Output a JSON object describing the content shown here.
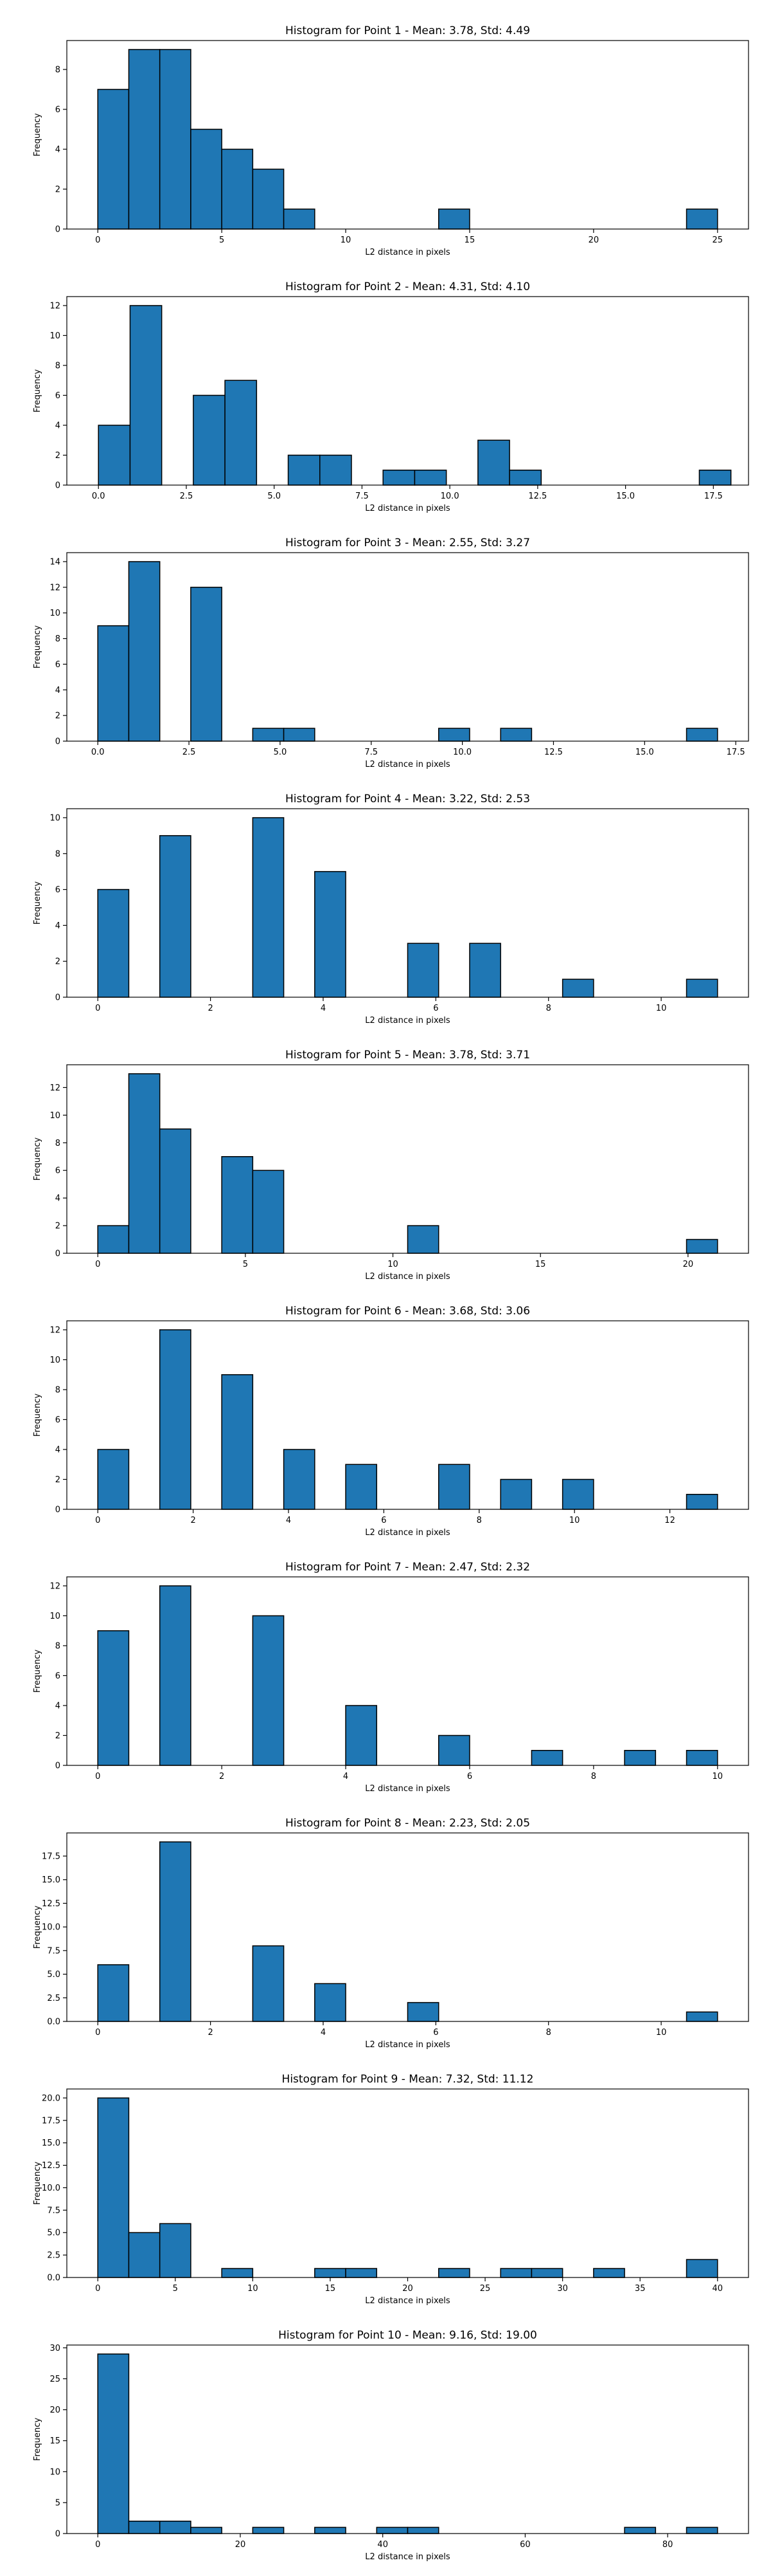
{
  "figure": {
    "bar_color": "#1f77b4",
    "edge_color": "#000000"
  },
  "chart_data": [
    {
      "type": "bar",
      "title": "Histogram for Point 1 - Mean: 3.78, Std: 4.49",
      "xlabel": "L2 distance in pixels",
      "ylabel": "Frequency",
      "xlim": [
        -1.25,
        26.25
      ],
      "ylim": [
        0,
        9.45
      ],
      "xticks": [
        0,
        5,
        10,
        15,
        20,
        25
      ],
      "xtick_labels": [
        "0",
        "5",
        "10",
        "15",
        "20",
        "25"
      ],
      "yticks": [
        0,
        2,
        4,
        6,
        8
      ],
      "ytick_labels": [
        "0",
        "2",
        "4",
        "6",
        "8"
      ],
      "bins": [
        {
          "x0": 0.0,
          "x1": 1.25,
          "count": 7
        },
        {
          "x0": 1.25,
          "x1": 2.5,
          "count": 9
        },
        {
          "x0": 2.5,
          "x1": 3.75,
          "count": 9
        },
        {
          "x0": 3.75,
          "x1": 5.0,
          "count": 5
        },
        {
          "x0": 5.0,
          "x1": 6.25,
          "count": 4
        },
        {
          "x0": 6.25,
          "x1": 7.5,
          "count": 3
        },
        {
          "x0": 7.5,
          "x1": 8.75,
          "count": 1
        },
        {
          "x0": 13.75,
          "x1": 15.0,
          "count": 1
        },
        {
          "x0": 23.75,
          "x1": 25.0,
          "count": 1
        }
      ]
    },
    {
      "type": "bar",
      "title": "Histogram for Point 2 - Mean: 4.31, Std: 4.10",
      "xlabel": "L2 distance in pixels",
      "ylabel": "Frequency",
      "xlim": [
        -0.9,
        18.5
      ],
      "ylim": [
        0,
        12.6
      ],
      "xticks": [
        0,
        2.5,
        5,
        7.5,
        10,
        12.5,
        15,
        17.5
      ],
      "xtick_labels": [
        "0.0",
        "2.5",
        "5.0",
        "7.5",
        "10.0",
        "12.5",
        "15.0",
        "17.5"
      ],
      "yticks": [
        0,
        2,
        4,
        6,
        8,
        10,
        12
      ],
      "ytick_labels": [
        "0",
        "2",
        "4",
        "6",
        "8",
        "10",
        "12"
      ],
      "bins": [
        {
          "x0": 0.0,
          "x1": 0.9,
          "count": 4
        },
        {
          "x0": 0.9,
          "x1": 1.8,
          "count": 12
        },
        {
          "x0": 2.7,
          "x1": 3.6,
          "count": 6
        },
        {
          "x0": 3.6,
          "x1": 4.5,
          "count": 7
        },
        {
          "x0": 5.4,
          "x1": 6.3,
          "count": 2
        },
        {
          "x0": 6.3,
          "x1": 7.2,
          "count": 2
        },
        {
          "x0": 8.1,
          "x1": 9.0,
          "count": 1
        },
        {
          "x0": 9.0,
          "x1": 9.9,
          "count": 1
        },
        {
          "x0": 10.8,
          "x1": 11.7,
          "count": 3
        },
        {
          "x0": 11.7,
          "x1": 12.6,
          "count": 1
        },
        {
          "x0": 17.1,
          "x1": 18.0,
          "count": 1
        }
      ]
    },
    {
      "type": "bar",
      "title": "Histogram for Point 3 - Mean: 2.55, Std: 3.27",
      "xlabel": "L2 distance in pixels",
      "ylabel": "Frequency",
      "xlim": [
        -0.85,
        17.85
      ],
      "ylim": [
        0,
        14.7
      ],
      "xticks": [
        0,
        2.5,
        5,
        7.5,
        10,
        12.5,
        15,
        17.5
      ],
      "xtick_labels": [
        "0.0",
        "2.5",
        "5.0",
        "7.5",
        "10.0",
        "12.5",
        "15.0",
        "17.5"
      ],
      "yticks": [
        0,
        2,
        4,
        6,
        8,
        10,
        12,
        14
      ],
      "ytick_labels": [
        "0",
        "2",
        "4",
        "6",
        "8",
        "10",
        "12",
        "14"
      ],
      "bins": [
        {
          "x0": 0.0,
          "x1": 0.85,
          "count": 9
        },
        {
          "x0": 0.85,
          "x1": 1.7,
          "count": 14
        },
        {
          "x0": 2.55,
          "x1": 3.4,
          "count": 12
        },
        {
          "x0": 4.25,
          "x1": 5.1,
          "count": 1
        },
        {
          "x0": 5.1,
          "x1": 5.95,
          "count": 1
        },
        {
          "x0": 9.35,
          "x1": 10.2,
          "count": 1
        },
        {
          "x0": 11.05,
          "x1": 11.9,
          "count": 1
        },
        {
          "x0": 16.15,
          "x1": 17.0,
          "count": 1
        }
      ]
    },
    {
      "type": "bar",
      "title": "Histogram for Point 4 - Mean: 3.22, Std: 2.53",
      "xlabel": "L2 distance in pixels",
      "ylabel": "Frequency",
      "xlim": [
        -0.55,
        11.55
      ],
      "ylim": [
        0,
        10.5
      ],
      "xticks": [
        0,
        2,
        4,
        6,
        8,
        10
      ],
      "xtick_labels": [
        "0",
        "2",
        "4",
        "6",
        "8",
        "10"
      ],
      "yticks": [
        0,
        2,
        4,
        6,
        8,
        10
      ],
      "ytick_labels": [
        "0",
        "2",
        "4",
        "6",
        "8",
        "10"
      ],
      "bins": [
        {
          "x0": 0.0,
          "x1": 0.55,
          "count": 6
        },
        {
          "x0": 1.1,
          "x1": 1.65,
          "count": 9
        },
        {
          "x0": 2.75,
          "x1": 3.3,
          "count": 10
        },
        {
          "x0": 3.85,
          "x1": 4.4,
          "count": 7
        },
        {
          "x0": 5.5,
          "x1": 6.05,
          "count": 3
        },
        {
          "x0": 6.6,
          "x1": 7.15,
          "count": 3
        },
        {
          "x0": 8.25,
          "x1": 8.8,
          "count": 1
        },
        {
          "x0": 10.45,
          "x1": 11.0,
          "count": 1
        }
      ]
    },
    {
      "type": "bar",
      "title": "Histogram for Point 5 - Mean: 3.78, Std: 3.71",
      "xlabel": "L2 distance in pixels",
      "ylabel": "Frequency",
      "xlim": [
        -1.05,
        22.05
      ],
      "ylim": [
        0,
        13.65
      ],
      "xticks": [
        0,
        5,
        10,
        15,
        20
      ],
      "xtick_labels": [
        "0",
        "5",
        "10",
        "15",
        "20"
      ],
      "yticks": [
        0,
        2,
        4,
        6,
        8,
        10,
        12
      ],
      "ytick_labels": [
        "0",
        "2",
        "4",
        "6",
        "8",
        "10",
        "12"
      ],
      "bins": [
        {
          "x0": 0.0,
          "x1": 1.05,
          "count": 2
        },
        {
          "x0": 1.05,
          "x1": 2.1,
          "count": 13
        },
        {
          "x0": 2.1,
          "x1": 3.15,
          "count": 9
        },
        {
          "x0": 4.2,
          "x1": 5.25,
          "count": 7
        },
        {
          "x0": 5.25,
          "x1": 6.3,
          "count": 6
        },
        {
          "x0": 10.5,
          "x1": 11.55,
          "count": 2
        },
        {
          "x0": 19.95,
          "x1": 21.0,
          "count": 1
        }
      ]
    },
    {
      "type": "bar",
      "title": "Histogram for Point 6 - Mean: 3.68, Std: 3.06",
      "xlabel": "L2 distance in pixels",
      "ylabel": "Frequency",
      "xlim": [
        -0.65,
        13.65
      ],
      "ylim": [
        0,
        12.6
      ],
      "xticks": [
        0,
        2,
        4,
        6,
        8,
        10,
        12
      ],
      "xtick_labels": [
        "0",
        "2",
        "4",
        "6",
        "8",
        "10",
        "12"
      ],
      "yticks": [
        0,
        2,
        4,
        6,
        8,
        10,
        12
      ],
      "ytick_labels": [
        "0",
        "2",
        "4",
        "6",
        "8",
        "10",
        "12"
      ],
      "bins": [
        {
          "x0": 0.0,
          "x1": 0.65,
          "count": 4
        },
        {
          "x0": 1.3,
          "x1": 1.95,
          "count": 12
        },
        {
          "x0": 2.6,
          "x1": 3.25,
          "count": 9
        },
        {
          "x0": 3.9,
          "x1": 4.55,
          "count": 4
        },
        {
          "x0": 5.2,
          "x1": 5.85,
          "count": 3
        },
        {
          "x0": 7.15,
          "x1": 7.8,
          "count": 3
        },
        {
          "x0": 8.45,
          "x1": 9.1,
          "count": 2
        },
        {
          "x0": 9.75,
          "x1": 10.4,
          "count": 2
        },
        {
          "x0": 12.35,
          "x1": 13.0,
          "count": 1
        }
      ]
    },
    {
      "type": "bar",
      "title": "Histogram for Point 7 - Mean: 2.47, Std: 2.32",
      "xlabel": "L2 distance in pixels",
      "ylabel": "Frequency",
      "xlim": [
        -0.5,
        10.5
      ],
      "ylim": [
        0,
        12.6
      ],
      "xticks": [
        0,
        2,
        4,
        6,
        8,
        10
      ],
      "xtick_labels": [
        "0",
        "2",
        "4",
        "6",
        "8",
        "10"
      ],
      "yticks": [
        0,
        2,
        4,
        6,
        8,
        10,
        12
      ],
      "ytick_labels": [
        "0",
        "2",
        "4",
        "6",
        "8",
        "10",
        "12"
      ],
      "bins": [
        {
          "x0": 0.0,
          "x1": 0.5,
          "count": 9
        },
        {
          "x0": 1.0,
          "x1": 1.5,
          "count": 12
        },
        {
          "x0": 2.5,
          "x1": 3.0,
          "count": 10
        },
        {
          "x0": 4.0,
          "x1": 4.5,
          "count": 4
        },
        {
          "x0": 5.5,
          "x1": 6.0,
          "count": 2
        },
        {
          "x0": 7.0,
          "x1": 7.5,
          "count": 1
        },
        {
          "x0": 8.5,
          "x1": 9.0,
          "count": 1
        },
        {
          "x0": 9.5,
          "x1": 10.0,
          "count": 1
        }
      ]
    },
    {
      "type": "bar",
      "title": "Histogram for Point 8 - Mean: 2.23, Std: 2.05",
      "xlabel": "L2 distance in pixels",
      "ylabel": "Frequency",
      "xlim": [
        -0.55,
        11.55
      ],
      "ylim": [
        0,
        19.95
      ],
      "xticks": [
        0,
        2,
        4,
        6,
        8,
        10
      ],
      "xtick_labels": [
        "0",
        "2",
        "4",
        "6",
        "8",
        "10"
      ],
      "yticks": [
        0,
        2.5,
        5,
        7.5,
        10,
        12.5,
        15,
        17.5
      ],
      "ytick_labels": [
        "0.0",
        "2.5",
        "5.0",
        "7.5",
        "10.0",
        "12.5",
        "15.0",
        "17.5"
      ],
      "bins": [
        {
          "x0": 0.0,
          "x1": 0.55,
          "count": 6
        },
        {
          "x0": 1.1,
          "x1": 1.65,
          "count": 19
        },
        {
          "x0": 2.75,
          "x1": 3.3,
          "count": 8
        },
        {
          "x0": 3.85,
          "x1": 4.4,
          "count": 4
        },
        {
          "x0": 5.5,
          "x1": 6.05,
          "count": 2
        },
        {
          "x0": 10.45,
          "x1": 11.0,
          "count": 1
        }
      ]
    },
    {
      "type": "bar",
      "title": "Histogram for Point 9 - Mean: 7.32, Std: 11.12",
      "xlabel": "L2 distance in pixels",
      "ylabel": "Frequency",
      "xlim": [
        -2.0,
        42.0
      ],
      "ylim": [
        0,
        21.0
      ],
      "xticks": [
        0,
        5,
        10,
        15,
        20,
        25,
        30,
        35,
        40
      ],
      "xtick_labels": [
        "0",
        "5",
        "10",
        "15",
        "20",
        "25",
        "30",
        "35",
        "40"
      ],
      "yticks": [
        0,
        2.5,
        5,
        7.5,
        10,
        12.5,
        15,
        17.5,
        20
      ],
      "ytick_labels": [
        "0.0",
        "2.5",
        "5.0",
        "7.5",
        "10.0",
        "12.5",
        "15.0",
        "17.5",
        "20.0"
      ],
      "bins": [
        {
          "x0": 0.0,
          "x1": 2.0,
          "count": 20
        },
        {
          "x0": 2.0,
          "x1": 4.0,
          "count": 5
        },
        {
          "x0": 4.0,
          "x1": 6.0,
          "count": 6
        },
        {
          "x0": 8.0,
          "x1": 10.0,
          "count": 1
        },
        {
          "x0": 14.0,
          "x1": 16.0,
          "count": 1
        },
        {
          "x0": 16.0,
          "x1": 18.0,
          "count": 1
        },
        {
          "x0": 22.0,
          "x1": 24.0,
          "count": 1
        },
        {
          "x0": 26.0,
          "x1": 28.0,
          "count": 1
        },
        {
          "x0": 28.0,
          "x1": 30.0,
          "count": 1
        },
        {
          "x0": 32.0,
          "x1": 34.0,
          "count": 1
        },
        {
          "x0": 38.0,
          "x1": 40.0,
          "count": 2
        }
      ]
    },
    {
      "type": "bar",
      "title": "Histogram for Point 10 - Mean: 9.16, Std: 19.00",
      "xlabel": "L2 distance in pixels",
      "ylabel": "Frequency",
      "xlim": [
        -4.35,
        91.35
      ],
      "ylim": [
        0,
        30.45
      ],
      "xticks": [
        0,
        20,
        40,
        60,
        80
      ],
      "xtick_labels": [
        "0",
        "20",
        "40",
        "60",
        "80"
      ],
      "yticks": [
        0,
        5,
        10,
        15,
        20,
        25,
        30
      ],
      "ytick_labels": [
        "0",
        "5",
        "10",
        "15",
        "20",
        "25",
        "30"
      ],
      "bins": [
        {
          "x0": 0.0,
          "x1": 4.35,
          "count": 29
        },
        {
          "x0": 4.35,
          "x1": 8.7,
          "count": 2
        },
        {
          "x0": 8.7,
          "x1": 13.05,
          "count": 2
        },
        {
          "x0": 13.05,
          "x1": 17.4,
          "count": 1
        },
        {
          "x0": 21.75,
          "x1": 26.1,
          "count": 1
        },
        {
          "x0": 30.45,
          "x1": 34.8,
          "count": 1
        },
        {
          "x0": 39.15,
          "x1": 43.5,
          "count": 1
        },
        {
          "x0": 43.5,
          "x1": 47.85,
          "count": 1
        },
        {
          "x0": 73.95,
          "x1": 78.3,
          "count": 1
        },
        {
          "x0": 82.65,
          "x1": 87.0,
          "count": 1
        }
      ]
    }
  ]
}
